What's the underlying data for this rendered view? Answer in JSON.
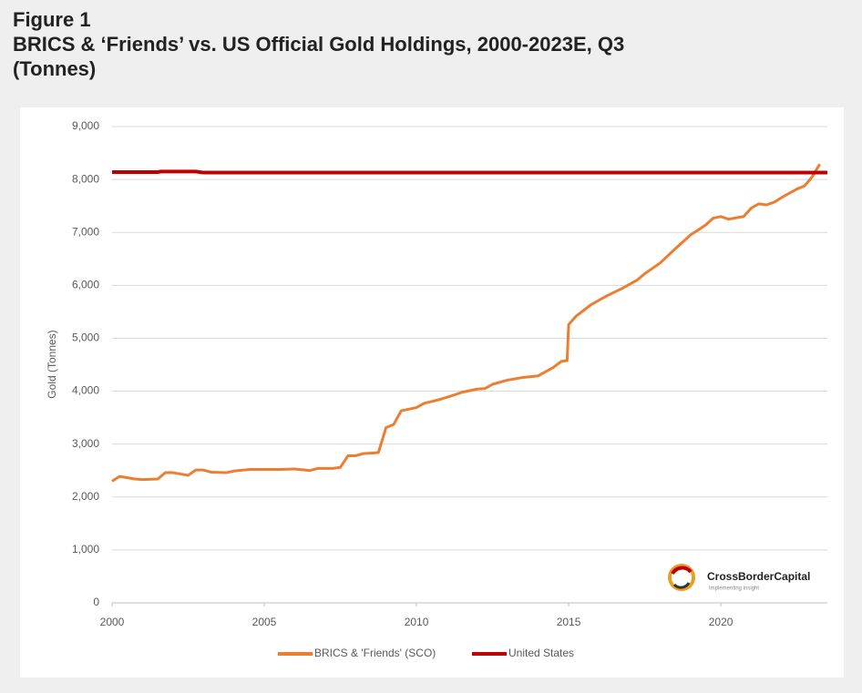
{
  "heading": "Figure 1",
  "chart_data": {
    "type": "line",
    "title": "BRICS & ‘Friends’ vs. US Official Gold Holdings, 2000-2023E, Q3 (Tonnes)",
    "y_label": "Gold (Tonnes)",
    "xlim": [
      2000,
      2023.5
    ],
    "xticks": [
      2000,
      2005,
      2010,
      2015,
      2020
    ],
    "ylim": [
      0,
      9000
    ],
    "yticks": [
      0,
      {
        "value": 1000,
        "label": "1,000"
      },
      {
        "value": 2000,
        "label": "2,000"
      },
      {
        "value": 3000,
        "label": "3,000"
      },
      {
        "value": 4000,
        "label": "4,000"
      },
      {
        "value": 5000,
        "label": "5,000"
      },
      {
        "value": 6000,
        "label": "6,000"
      },
      {
        "value": 7000,
        "label": "7,000"
      },
      {
        "value": 8000,
        "label": "8,000"
      },
      {
        "value": 9000,
        "label": "9,000"
      }
    ],
    "grid": true,
    "legend": "bottom",
    "series": [
      {
        "name": "BRICS & 'Friends' (SCO)",
        "color": "#ed7d31",
        "x": [
          2000,
          2000.25,
          2000.75,
          2001,
          2001.5,
          2001.75,
          2002,
          2002.5,
          2002.75,
          2003,
          2003.25,
          2003.75,
          2004,
          2004.5,
          2005,
          2005.5,
          2006,
          2006.5,
          2006.75,
          2007.25,
          2007.5,
          2007.75,
          2008,
          2008.25,
          2008.75,
          2009,
          2009.25,
          2009.5,
          2010,
          2010.25,
          2010.75,
          2011.25,
          2011.5,
          2012,
          2012.25,
          2012.5,
          2013,
          2013.5,
          2014,
          2014.5,
          2014.75,
          2014.95,
          2015,
          2015.25,
          2015.75,
          2016.25,
          2016.75,
          2017.25,
          2017.5,
          2018,
          2018.5,
          2019,
          2019.5,
          2019.75,
          2020,
          2020.25,
          2020.75,
          2021,
          2021.25,
          2021.5,
          2021.75,
          2022,
          2022.5,
          2022.75,
          2023,
          2023.25
        ],
        "values": [
          2300,
          2390,
          2340,
          2330,
          2340,
          2460,
          2460,
          2410,
          2510,
          2510,
          2470,
          2460,
          2490,
          2520,
          2520,
          2520,
          2530,
          2500,
          2540,
          2540,
          2560,
          2780,
          2780,
          2820,
          2840,
          3310,
          3370,
          3630,
          3690,
          3770,
          3840,
          3930,
          3980,
          4040,
          4050,
          4130,
          4210,
          4260,
          4290,
          4450,
          4560,
          4580,
          5260,
          5420,
          5640,
          5800,
          5940,
          6100,
          6220,
          6420,
          6690,
          6950,
          7140,
          7270,
          7300,
          7250,
          7300,
          7460,
          7540,
          7520,
          7570,
          7660,
          7820,
          7880,
          8050,
          8290
        ]
      },
      {
        "name": "United States",
        "color": "#c00000",
        "x": [
          2000,
          2001.5,
          2001.6,
          2002.75,
          2003,
          2023.5
        ],
        "values": [
          8140,
          8140,
          8150,
          8150,
          8130,
          8130
        ]
      }
    ],
    "logo": {
      "name": "CrossBorderCapital",
      "tagline": "Implementing insight"
    }
  }
}
